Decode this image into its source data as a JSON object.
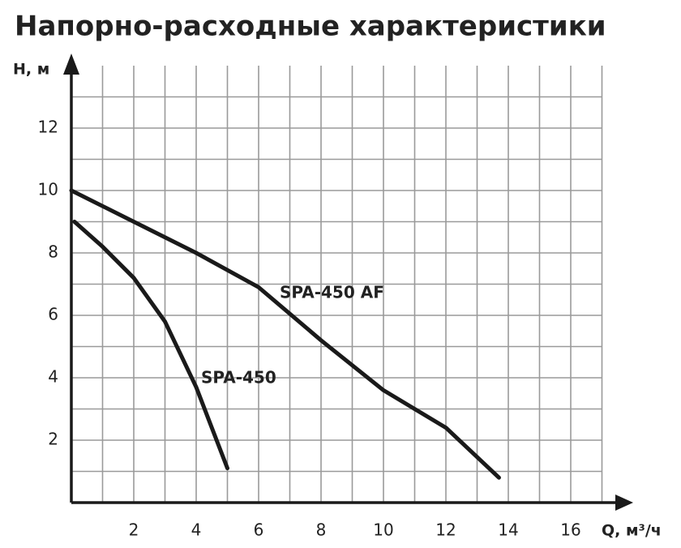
{
  "chart_data": {
    "type": "line",
    "title": "Напорно-расходные характеристики",
    "x_label": "Q, м³/ч",
    "y_label": "H, м",
    "xlim": [
      0,
      18
    ],
    "ylim": [
      0,
      14
    ],
    "xticks": [
      2,
      4,
      6,
      8,
      10,
      12,
      14,
      16
    ],
    "yticks": [
      2,
      4,
      6,
      8,
      10,
      12
    ],
    "xminor": [
      1,
      3,
      5,
      7,
      9,
      11,
      13,
      15,
      17
    ],
    "yminor": [
      1,
      3,
      5,
      7,
      9,
      11,
      13
    ],
    "grid": true,
    "series": [
      {
        "name": "SPA-450 AF",
        "color": "#1a1a1a",
        "x": [
          0,
          2,
          4,
          6,
          8,
          10,
          12,
          13.7
        ],
        "values": [
          10,
          9.0,
          8.0,
          6.9,
          5.2,
          3.6,
          2.4,
          0.8
        ]
      },
      {
        "name": "SPA-450",
        "color": "#1a1a1a",
        "x": [
          0.1,
          1,
          2,
          3,
          4,
          5
        ],
        "values": [
          9,
          8.2,
          7.2,
          5.8,
          3.7,
          1.1
        ]
      }
    ]
  }
}
